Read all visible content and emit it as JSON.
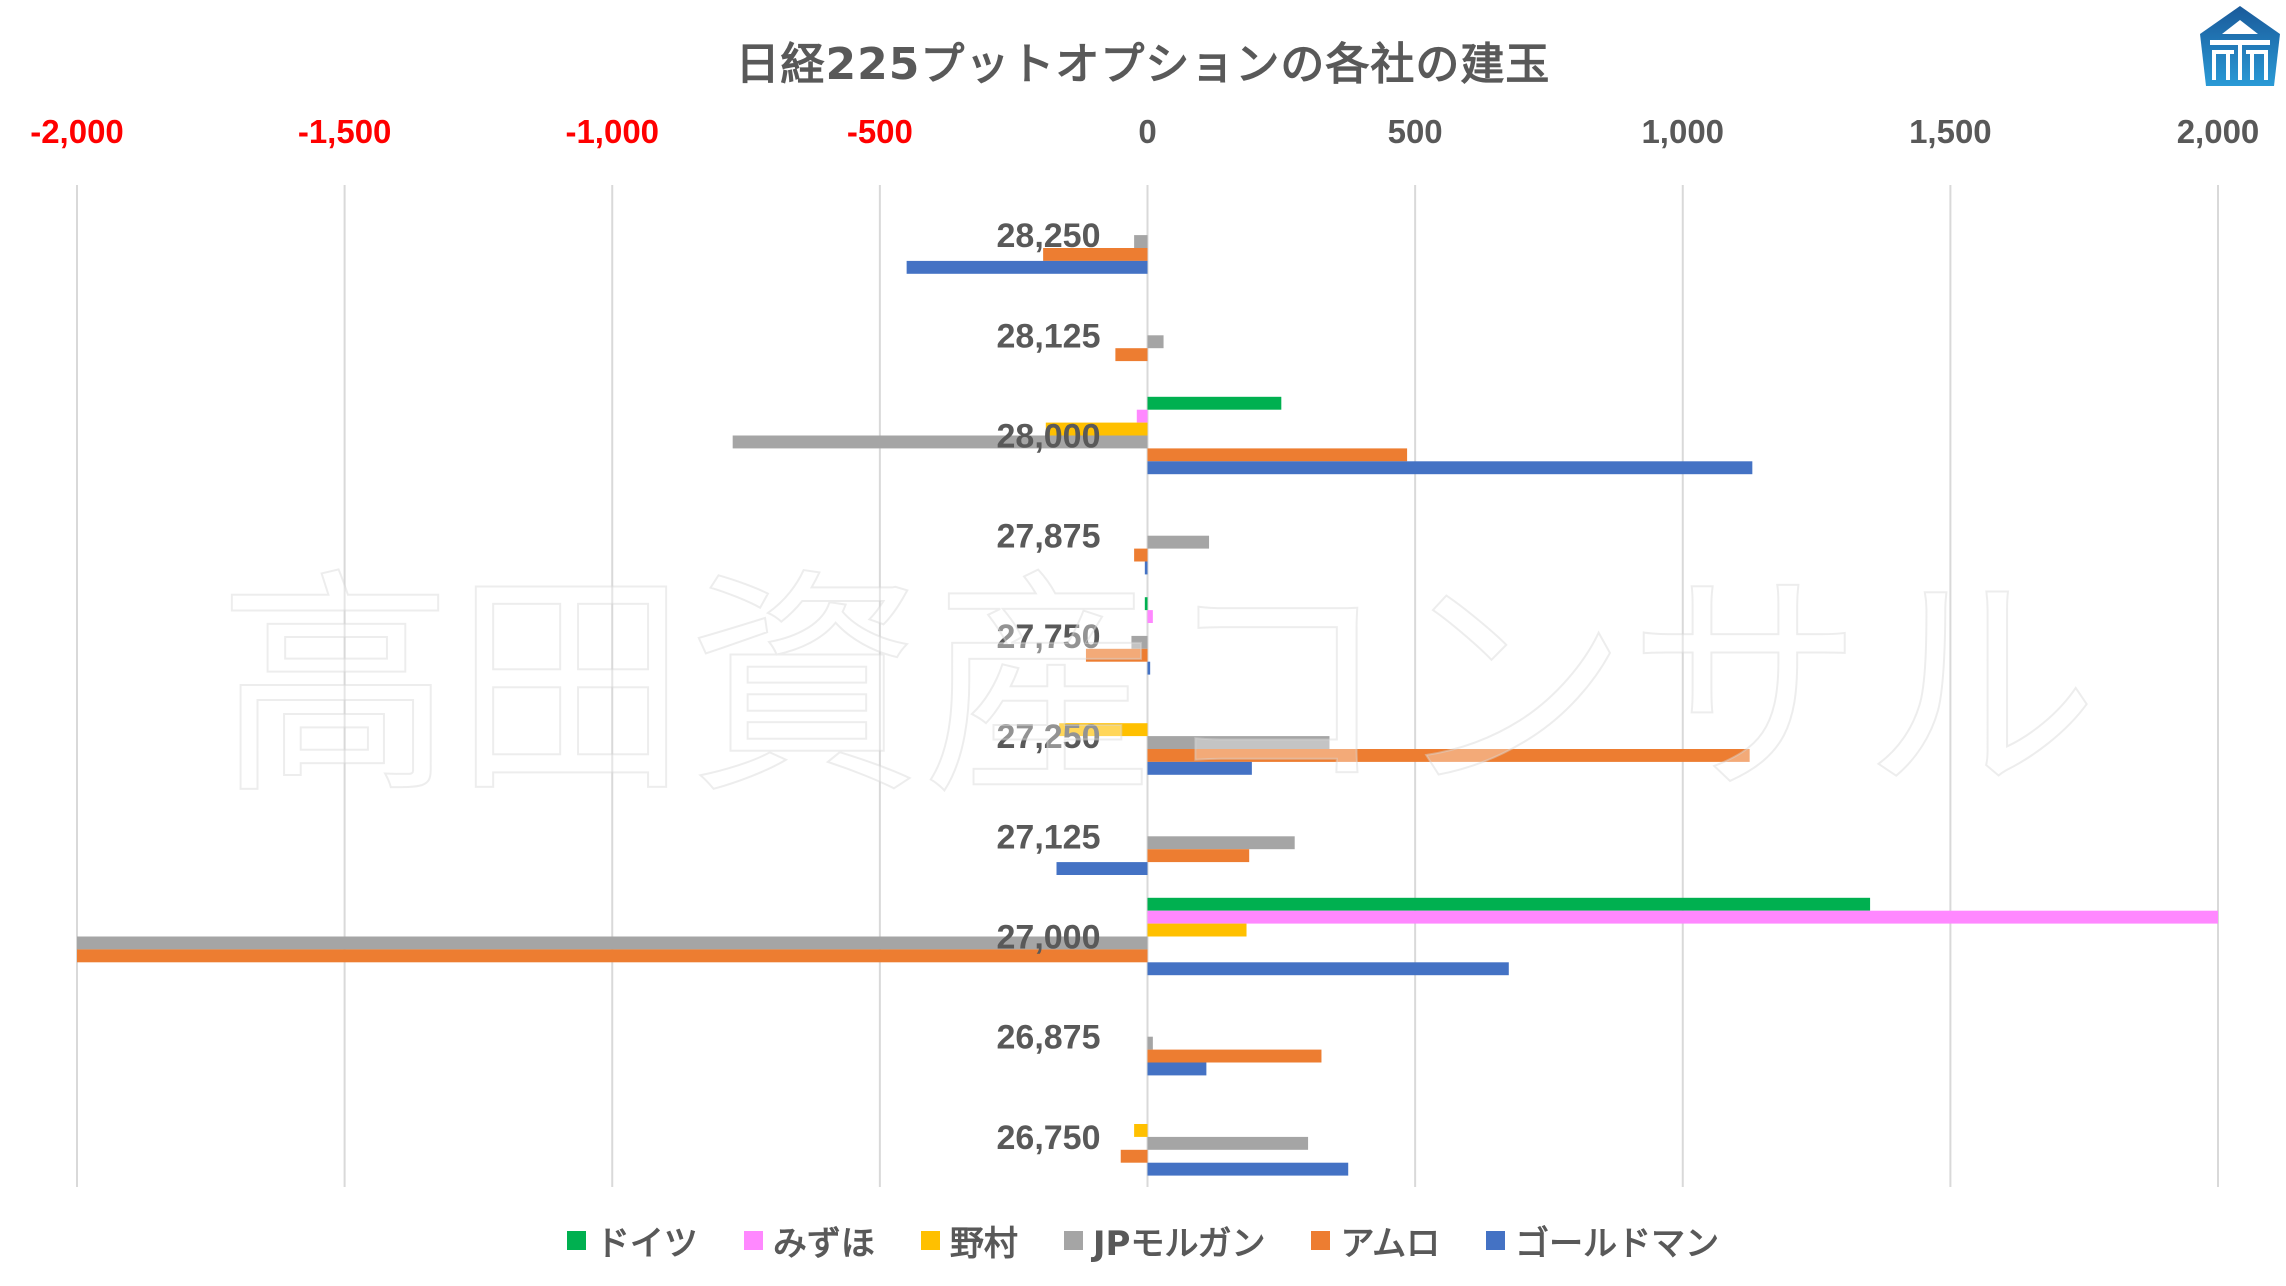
{
  "chart_data": {
    "type": "bar",
    "orientation": "horizontal",
    "title": "日経225プットオプションの各社の建玉",
    "xlabel": "",
    "ylabel": "",
    "xlim": [
      -2000,
      2000
    ],
    "x_ticks": [
      -2000,
      -1500,
      -1000,
      -500,
      0,
      500,
      1000,
      1500,
      2000
    ],
    "x_tick_labels": [
      "-2,000",
      "-1,500",
      "-1,000",
      "-500",
      "0",
      "500",
      "1,000",
      "1,500",
      "2,000"
    ],
    "negative_tick_color": "#FF0000",
    "positive_tick_color": "#595959",
    "grid": "vertical",
    "legend_position": "bottom",
    "categories": [
      "28,250",
      "28,125",
      "28,000",
      "27,875",
      "27,750",
      "27,250",
      "27,125",
      "27,000",
      "26,875",
      "26,750"
    ],
    "series": [
      {
        "name": "ドイツ",
        "color": "#00B050",
        "values": [
          0,
          0,
          250,
          0,
          -5,
          0,
          0,
          1350,
          0,
          0
        ]
      },
      {
        "name": "みずほ",
        "color": "#FF88FF",
        "values": [
          0,
          0,
          -20,
          0,
          10,
          0,
          0,
          2000,
          0,
          0
        ]
      },
      {
        "name": "野村",
        "color": "#FFC000",
        "values": [
          0,
          0,
          -190,
          0,
          0,
          -165,
          0,
          185,
          0,
          -25
        ]
      },
      {
        "name": "JPモルガン",
        "color": "#A5A5A5",
        "values": [
          -25,
          30,
          -775,
          115,
          -30,
          340,
          275,
          -2000,
          10,
          300
        ]
      },
      {
        "name": "アムロ",
        "color": "#ED7D31",
        "values": [
          -195,
          -60,
          485,
          -25,
          -115,
          1125,
          190,
          -2000,
          325,
          -50
        ]
      },
      {
        "name": "ゴールドマン",
        "color": "#4472C4",
        "values": [
          -450,
          0,
          1130,
          -5,
          5,
          195,
          -170,
          675,
          110,
          375
        ]
      }
    ],
    "watermark": "高田資産コンサル"
  },
  "logo": {
    "name": "pentagon-house-logo",
    "color_top": "#1A5A9A",
    "color_bottom": "#2A9AD6"
  }
}
